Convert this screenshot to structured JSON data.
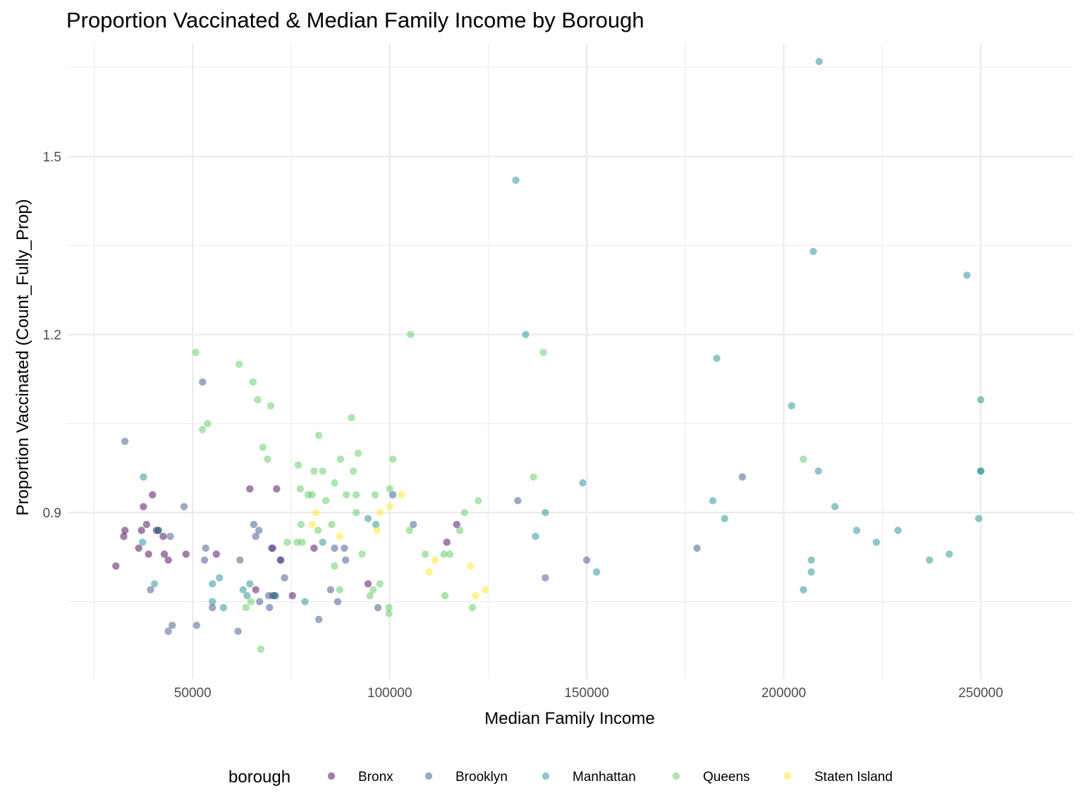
{
  "chart_data": {
    "type": "scatter",
    "title": "Proportion Vaccinated & Median Family Income by Borough",
    "xlabel": "Median Family Income",
    "ylabel": "Proportion Vaccinated (Count_Fully_Prop)",
    "xlim": [
      24000,
      262000
    ],
    "ylim": [
      0.62,
      1.69
    ],
    "x_ticks": [
      50000,
      100000,
      150000,
      200000,
      250000
    ],
    "x_tick_labels": [
      "50000",
      "100000",
      "150000",
      "200000",
      "250000"
    ],
    "y_ticks": [
      0.9,
      1.2,
      1.5
    ],
    "y_tick_labels": [
      "0.9",
      "1.2",
      "1.5"
    ],
    "grid": true,
    "legend": {
      "title": "borough",
      "position": "bottom",
      "entries": [
        "Bronx",
        "Brooklyn",
        "Manhattan",
        "Queens",
        "Staten Island"
      ]
    },
    "series": [
      {
        "name": "Bronx",
        "color": "#440154",
        "points": [
          [
            30500,
            0.81
          ],
          [
            32500,
            0.86
          ],
          [
            32800,
            0.87
          ],
          [
            36300,
            0.84
          ],
          [
            37000,
            0.87
          ],
          [
            37500,
            0.91
          ],
          [
            38300,
            0.88
          ],
          [
            38800,
            0.83
          ],
          [
            39800,
            0.93
          ],
          [
            40800,
            0.87
          ],
          [
            41300,
            0.87
          ],
          [
            42500,
            0.86
          ],
          [
            42800,
            0.83
          ],
          [
            43800,
            0.82
          ],
          [
            48300,
            0.83
          ],
          [
            56000,
            0.83
          ],
          [
            64500,
            0.94
          ],
          [
            66000,
            0.77
          ],
          [
            70300,
            0.84
          ],
          [
            70800,
            0.76
          ],
          [
            71300,
            0.94
          ],
          [
            72300,
            0.82
          ],
          [
            75300,
            0.76
          ],
          [
            80800,
            0.84
          ],
          [
            94500,
            0.78
          ],
          [
            114500,
            0.85
          ],
          [
            117000,
            0.88
          ]
        ]
      },
      {
        "name": "Brooklyn",
        "color": "#3b528b",
        "points": [
          [
            32800,
            1.02
          ],
          [
            39300,
            0.77
          ],
          [
            43800,
            0.7
          ],
          [
            44300,
            0.86
          ],
          [
            44800,
            0.71
          ],
          [
            47800,
            0.91
          ],
          [
            51000,
            0.71
          ],
          [
            52500,
            1.12
          ],
          [
            53000,
            0.82
          ],
          [
            53300,
            0.84
          ],
          [
            55000,
            0.74
          ],
          [
            61500,
            0.7
          ],
          [
            62000,
            0.82
          ],
          [
            65500,
            0.88
          ],
          [
            66000,
            0.86
          ],
          [
            66800,
            0.87
          ],
          [
            67000,
            0.75
          ],
          [
            69300,
            0.76
          ],
          [
            69500,
            0.74
          ],
          [
            70000,
            0.84
          ],
          [
            70300,
            0.76
          ],
          [
            72300,
            0.82
          ],
          [
            73300,
            0.79
          ],
          [
            82000,
            0.72
          ],
          [
            85000,
            0.77
          ],
          [
            86000,
            0.84
          ],
          [
            86800,
            0.75
          ],
          [
            88500,
            0.84
          ],
          [
            88800,
            0.82
          ],
          [
            97000,
            0.74
          ],
          [
            100800,
            0.93
          ],
          [
            106000,
            0.88
          ],
          [
            132500,
            0.92
          ],
          [
            139500,
            0.79
          ],
          [
            150000,
            0.82
          ],
          [
            178000,
            0.84
          ],
          [
            189500,
            0.96
          ]
        ]
      },
      {
        "name": "Manhattan",
        "color": "#21908d",
        "points": [
          [
            37300,
            0.85
          ],
          [
            37500,
            0.96
          ],
          [
            40300,
            0.78
          ],
          [
            41300,
            0.87
          ],
          [
            55000,
            0.78
          ],
          [
            55000,
            0.75
          ],
          [
            56800,
            0.79
          ],
          [
            57800,
            0.74
          ],
          [
            62800,
            0.77
          ],
          [
            63800,
            0.76
          ],
          [
            64500,
            0.78
          ],
          [
            71000,
            0.76
          ],
          [
            78500,
            0.75
          ],
          [
            83000,
            0.85
          ],
          [
            94500,
            0.89
          ],
          [
            96500,
            0.88
          ],
          [
            132000,
            1.46
          ],
          [
            134500,
            1.2
          ],
          [
            137000,
            0.86
          ],
          [
            139500,
            0.9
          ],
          [
            149000,
            0.95
          ],
          [
            152500,
            0.8
          ],
          [
            182000,
            0.92
          ],
          [
            183000,
            1.16
          ],
          [
            185000,
            0.89
          ],
          [
            202000,
            1.08
          ],
          [
            205000,
            0.77
          ],
          [
            207000,
            0.82
          ],
          [
            207000,
            0.8
          ],
          [
            207500,
            1.34
          ],
          [
            208800,
            0.97
          ],
          [
            209000,
            1.66
          ],
          [
            213000,
            0.91
          ],
          [
            218500,
            0.87
          ],
          [
            223500,
            0.85
          ],
          [
            229000,
            0.87
          ],
          [
            237000,
            0.82
          ],
          [
            242000,
            0.83
          ],
          [
            246500,
            1.3
          ],
          [
            249500,
            0.89
          ],
          [
            250000,
            1.09
          ],
          [
            250000,
            0.97
          ],
          [
            250000,
            0.97
          ]
        ]
      },
      {
        "name": "Queens",
        "color": "#5ec962",
        "points": [
          [
            50800,
            1.17
          ],
          [
            52500,
            1.04
          ],
          [
            53800,
            1.05
          ],
          [
            61800,
            1.15
          ],
          [
            63500,
            0.74
          ],
          [
            64800,
            0.75
          ],
          [
            65300,
            1.12
          ],
          [
            66500,
            1.09
          ],
          [
            67300,
            0.67
          ],
          [
            67800,
            1.01
          ],
          [
            69000,
            0.99
          ],
          [
            69800,
            1.08
          ],
          [
            74000,
            0.85
          ],
          [
            76500,
            0.85
          ],
          [
            76800,
            0.98
          ],
          [
            77300,
            0.94
          ],
          [
            77500,
            0.88
          ],
          [
            77800,
            0.85
          ],
          [
            79300,
            0.93
          ],
          [
            80300,
            0.93
          ],
          [
            80800,
            0.97
          ],
          [
            81800,
            0.87
          ],
          [
            82000,
            1.03
          ],
          [
            83000,
            0.97
          ],
          [
            83800,
            0.92
          ],
          [
            85300,
            0.88
          ],
          [
            86000,
            0.95
          ],
          [
            86000,
            0.81
          ],
          [
            87300,
            0.77
          ],
          [
            87500,
            0.99
          ],
          [
            89000,
            0.93
          ],
          [
            90300,
            1.06
          ],
          [
            90800,
            0.97
          ],
          [
            91500,
            0.9
          ],
          [
            91500,
            0.93
          ],
          [
            92000,
            1.0
          ],
          [
            93000,
            0.83
          ],
          [
            95000,
            0.76
          ],
          [
            95800,
            0.77
          ],
          [
            96300,
            0.93
          ],
          [
            97500,
            0.78
          ],
          [
            99800,
            0.74
          ],
          [
            99800,
            0.73
          ],
          [
            100000,
            0.94
          ],
          [
            100800,
            0.99
          ],
          [
            105000,
            0.87
          ],
          [
            105300,
            1.2
          ],
          [
            109000,
            0.83
          ],
          [
            113800,
            0.83
          ],
          [
            114000,
            0.76
          ],
          [
            115300,
            0.83
          ],
          [
            117800,
            0.87
          ],
          [
            119000,
            0.9
          ],
          [
            121000,
            0.74
          ],
          [
            122500,
            0.92
          ],
          [
            136500,
            0.96
          ],
          [
            139000,
            1.17
          ],
          [
            205000,
            0.99
          ]
        ]
      },
      {
        "name": "Staten Island",
        "color": "#fde725",
        "points": [
          [
            80300,
            0.88
          ],
          [
            81300,
            0.9
          ],
          [
            87300,
            0.86
          ],
          [
            96800,
            0.87
          ],
          [
            97500,
            0.9
          ],
          [
            100000,
            0.91
          ],
          [
            103000,
            0.93
          ],
          [
            110000,
            0.8
          ],
          [
            111500,
            0.82
          ],
          [
            120500,
            0.81
          ],
          [
            121800,
            0.76
          ],
          [
            124300,
            0.77
          ]
        ]
      }
    ]
  }
}
